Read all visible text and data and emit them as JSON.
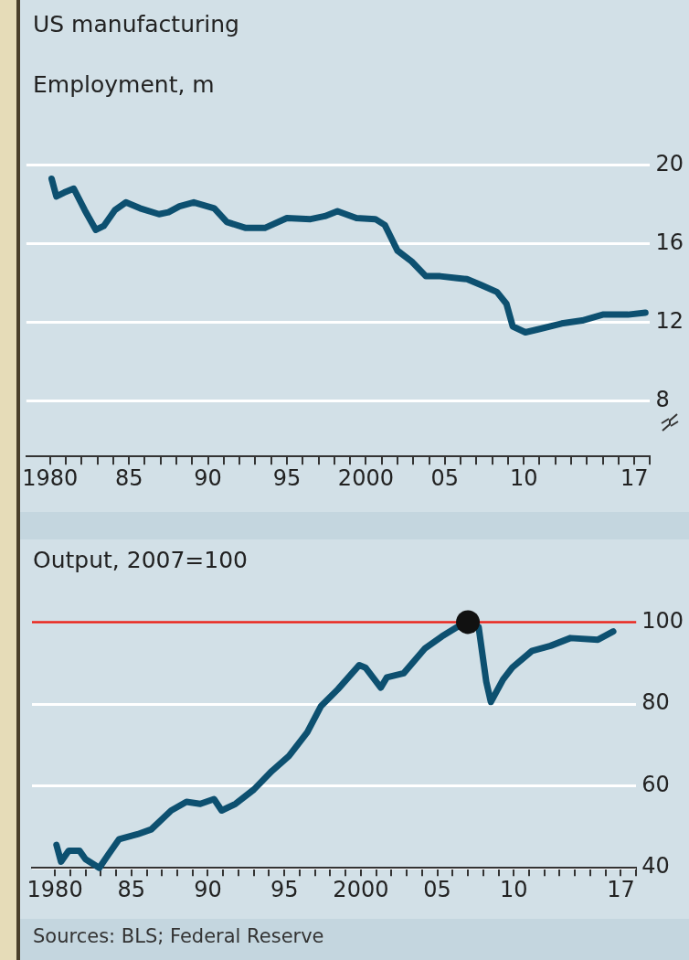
{
  "chart_data": [
    {
      "type": "line",
      "title": "US manufacturing",
      "subtitle": "Employment, m",
      "grid": "y",
      "marker": "none",
      "xlim": [
        1978.5,
        2018
      ],
      "ylim": [
        5.2,
        20
      ],
      "yticks": [
        8,
        12,
        16,
        20
      ],
      "xticks": [
        {
          "value": 1980,
          "label": "1980"
        },
        {
          "value": 1981,
          "label": null
        },
        {
          "value": 1982,
          "label": null
        },
        {
          "value": 1983,
          "label": null
        },
        {
          "value": 1984,
          "label": null
        },
        {
          "value": 1985,
          "label": "85"
        },
        {
          "value": 1986,
          "label": null
        },
        {
          "value": 1987,
          "label": null
        },
        {
          "value": 1988,
          "label": null
        },
        {
          "value": 1989,
          "label": null
        },
        {
          "value": 1990,
          "label": "90"
        },
        {
          "value": 1991,
          "label": null
        },
        {
          "value": 1992,
          "label": null
        },
        {
          "value": 1993,
          "label": null
        },
        {
          "value": 1994,
          "label": null
        },
        {
          "value": 1995,
          "label": "95"
        },
        {
          "value": 1996,
          "label": null
        },
        {
          "value": 1997,
          "label": null
        },
        {
          "value": 1998,
          "label": null
        },
        {
          "value": 1999,
          "label": null
        },
        {
          "value": 2000,
          "label": "2000"
        },
        {
          "value": 2001,
          "label": null
        },
        {
          "value": 2002,
          "label": null
        },
        {
          "value": 2003,
          "label": null
        },
        {
          "value": 2004,
          "label": null
        },
        {
          "value": 2005,
          "label": "05"
        },
        {
          "value": 2006,
          "label": null
        },
        {
          "value": 2007,
          "label": null
        },
        {
          "value": 2008,
          "label": null
        },
        {
          "value": 2009,
          "label": null
        },
        {
          "value": 2010,
          "label": "10"
        },
        {
          "value": 2011,
          "label": null
        },
        {
          "value": 2012,
          "label": null
        },
        {
          "value": 2013,
          "label": null
        },
        {
          "value": 2014,
          "label": null
        },
        {
          "value": 2015,
          "label": null
        },
        {
          "value": 2016,
          "label": null
        },
        {
          "value": 2017,
          "label": "17"
        },
        {
          "value": 2018,
          "label": null
        }
      ],
      "series": [
        {
          "color": "#0d5070",
          "x": [
            1980.1,
            1980.4,
            1980.9,
            1981.5,
            1982.2,
            1982.9,
            1983.4,
            1984.1,
            1984.8,
            1985.7,
            1986.9,
            1987.5,
            1988.2,
            1989.1,
            1990.4,
            1991.2,
            1992.4,
            1993.6,
            1995.0,
            1996.5,
            1997.4,
            1998.2,
            1999.4,
            2000.6,
            2001.2,
            2002.0,
            2002.9,
            2003.8,
            2004.7,
            2005.8,
            2006.4,
            2007.3,
            2008.3,
            2008.9,
            2009.3,
            2010.1,
            2010.9,
            2012.4,
            2013.7,
            2015.0,
            2016.6,
            2017.7
          ],
          "values": [
            19.3,
            18.4,
            18.6,
            18.8,
            17.7,
            16.7,
            16.9,
            17.7,
            18.1,
            17.8,
            17.5,
            17.6,
            17.9,
            18.1,
            17.8,
            17.1,
            16.8,
            16.8,
            17.3,
            17.25,
            17.4,
            17.65,
            17.3,
            17.25,
            16.95,
            15.65,
            15.1,
            14.35,
            14.35,
            14.25,
            14.2,
            13.9,
            13.55,
            12.95,
            11.8,
            11.5,
            11.65,
            11.95,
            12.1,
            12.4,
            12.4,
            12.5
          ]
        }
      ]
    },
    {
      "type": "line",
      "title": "Output, 2007=100",
      "grid": "y",
      "marker": "none",
      "xlim": [
        1978.5,
        2018
      ],
      "ylim": [
        40,
        100
      ],
      "yticks": [
        40,
        60,
        80,
        100
      ],
      "xticks": [
        {
          "value": 1980,
          "label": "1980"
        },
        {
          "value": 1981,
          "label": null
        },
        {
          "value": 1982,
          "label": null
        },
        {
          "value": 1983,
          "label": null
        },
        {
          "value": 1984,
          "label": null
        },
        {
          "value": 1985,
          "label": "85"
        },
        {
          "value": 1986,
          "label": null
        },
        {
          "value": 1987,
          "label": null
        },
        {
          "value": 1988,
          "label": null
        },
        {
          "value": 1989,
          "label": null
        },
        {
          "value": 1990,
          "label": "90"
        },
        {
          "value": 1991,
          "label": null
        },
        {
          "value": 1992,
          "label": null
        },
        {
          "value": 1993,
          "label": null
        },
        {
          "value": 1994,
          "label": null
        },
        {
          "value": 1995,
          "label": "95"
        },
        {
          "value": 1996,
          "label": null
        },
        {
          "value": 1997,
          "label": null
        },
        {
          "value": 1998,
          "label": null
        },
        {
          "value": 1999,
          "label": null
        },
        {
          "value": 2000,
          "label": "2000"
        },
        {
          "value": 2001,
          "label": null
        },
        {
          "value": 2002,
          "label": null
        },
        {
          "value": 2003,
          "label": null
        },
        {
          "value": 2004,
          "label": null
        },
        {
          "value": 2005,
          "label": "05"
        },
        {
          "value": 2006,
          "label": null
        },
        {
          "value": 2007,
          "label": null
        },
        {
          "value": 2008,
          "label": null
        },
        {
          "value": 2009,
          "label": null
        },
        {
          "value": 2010,
          "label": "10"
        },
        {
          "value": 2011,
          "label": null
        },
        {
          "value": 2012,
          "label": null
        },
        {
          "value": 2013,
          "label": null
        },
        {
          "value": 2014,
          "label": null
        },
        {
          "value": 2015,
          "label": null
        },
        {
          "value": 2016,
          "label": null
        },
        {
          "value": 2017,
          "label": "17"
        },
        {
          "value": 2018,
          "label": null
        }
      ],
      "ref_lines": [
        {
          "axis": "y",
          "value": 100,
          "color": "#e3231b"
        }
      ],
      "annotations": [
        "Sources: BLS; Federal Reserve"
      ],
      "series": [
        {
          "color": "#0d5070",
          "x": [
            1980.1,
            1980.4,
            1980.9,
            1981.6,
            1982.0,
            1982.9,
            1983.5,
            1984.2,
            1985.4,
            1986.3,
            1987.6,
            1988.6,
            1989.5,
            1990.4,
            1990.9,
            1991.8,
            1993.0,
            1994.2,
            1995.3,
            1996.5,
            1997.4,
            1998.5,
            1999.9,
            2000.3,
            2001.3,
            2001.7,
            2002.8,
            2004.2,
            2005.3,
            2006.3,
            2007.0,
            2007.7,
            2008.2,
            2008.5,
            2009.3,
            2009.9,
            2011.2,
            2012.4,
            2013.7,
            2015.5,
            2016.5
          ],
          "values": [
            45.6,
            41.5,
            44.2,
            44.2,
            42.1,
            40.0,
            43.3,
            47.0,
            48.2,
            49.4,
            54.0,
            56.1,
            55.6,
            56.8,
            54.0,
            55.6,
            59.1,
            63.7,
            67.3,
            73.1,
            79.5,
            83.6,
            89.5,
            88.9,
            84.0,
            86.5,
            87.5,
            93.6,
            96.5,
            98.8,
            100,
            98.8,
            85.4,
            80.5,
            86.0,
            88.9,
            93.0,
            94.2,
            96.1,
            95.7,
            97.7
          ]
        },
        {
          "type": "scatter",
          "marker": "circle",
          "color": "#111111",
          "x": [
            2007
          ],
          "values": [
            100
          ]
        }
      ]
    }
  ]
}
